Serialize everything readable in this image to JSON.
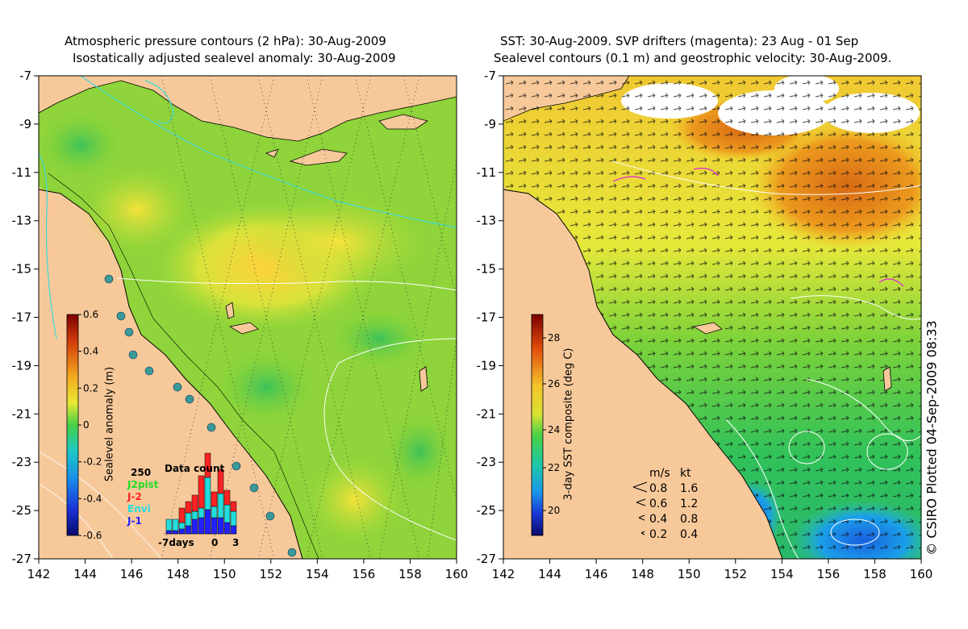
{
  "left_panel": {
    "title_line1": "Atmospheric pressure contours (2 hPa): 30-Aug-2009",
    "title_line2": "Isostatically adjusted sealevel anomaly: 30-Aug-2009",
    "colorbar": {
      "label": "Sealevel anomaly (m)",
      "ticks": [
        "0.6",
        "0.4",
        "0.2",
        "0",
        "-0.2",
        "-0.4",
        "-0.6"
      ]
    },
    "data_count": {
      "title": "Data count",
      "y_tick": "250",
      "legend": [
        {
          "label": "J2pist",
          "color": "#22dd22"
        },
        {
          "label": "J-2",
          "color": "#ff2222"
        },
        {
          "label": "Envi",
          "color": "#22dddd"
        },
        {
          "label": "J-1",
          "color": "#2222ff"
        }
      ],
      "x_ticks": [
        "-7days",
        "0",
        "3"
      ]
    }
  },
  "right_panel": {
    "title_line1": "SST: 30-Aug-2009. SVP drifters (magenta): 23 Aug - 01 Sep",
    "title_line2": "Sealevel contours (0.1 m) and geostrophic velocity: 30-Aug-2009.",
    "colorbar": {
      "label": "3-day SST composite (deg C)",
      "ticks": [
        "28",
        "26",
        "24",
        "22",
        "20"
      ]
    },
    "velocity_legend": {
      "header_ms": "m/s",
      "header_kt": "kt",
      "rows": [
        {
          "ms": "0.8",
          "kt": "1.6"
        },
        {
          "ms": "0.6",
          "kt": "1.2"
        },
        {
          "ms": "0.4",
          "kt": "0.8"
        },
        {
          "ms": "0.2",
          "kt": "0.4"
        }
      ]
    }
  },
  "axes": {
    "y_ticks": [
      "-7",
      "-9",
      "-11",
      "-13",
      "-15",
      "-17",
      "-19",
      "-21",
      "-23",
      "-25",
      "-27"
    ],
    "x_ticks": [
      "142",
      "144",
      "146",
      "148",
      "150",
      "152",
      "154",
      "156",
      "158",
      "160"
    ]
  },
  "copyright": "© CSIRO Plotted 04-Sep-2009 08:33"
}
